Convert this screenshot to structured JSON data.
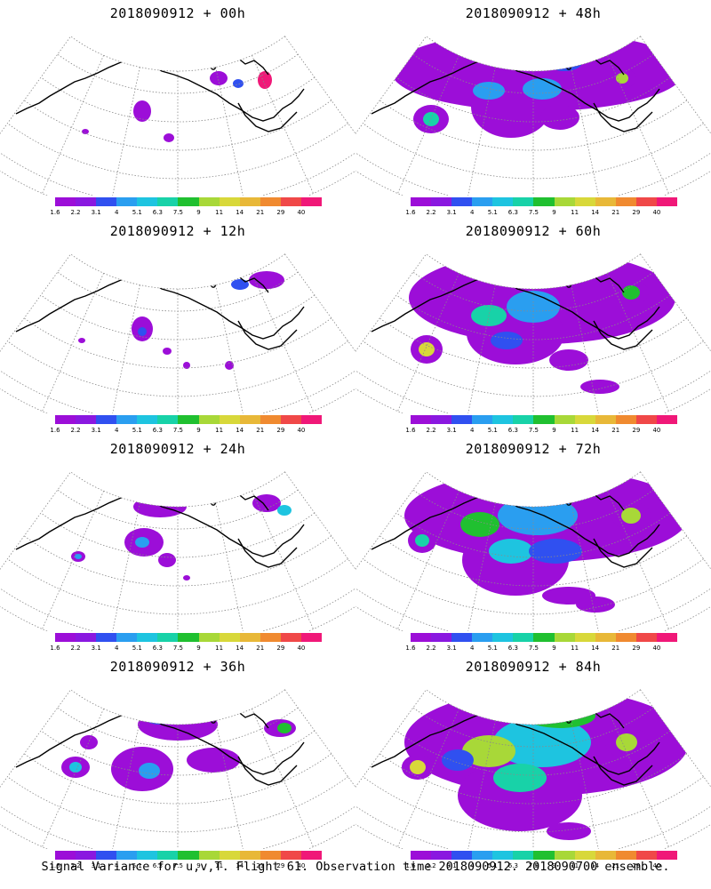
{
  "footer": "Signal Variance for u,v,T. Flight 61. Observation time 2018090912. 2018090700 ensemble.",
  "colorbar": {
    "labels": [
      "1.6",
      "2.2",
      "3.1",
      "4",
      "5.1",
      "6.3",
      "7.5",
      "9",
      "11",
      "14",
      "21",
      "29",
      "40"
    ],
    "colors": [
      "#9c0ed8",
      "#8a18e0",
      "#3050f0",
      "#2a9ef0",
      "#1ec4e0",
      "#18d2a8",
      "#20c030",
      "#a8d838",
      "#d8d83a",
      "#e8b838",
      "#f08a30",
      "#f04848",
      "#f01878"
    ]
  },
  "panels": [
    {
      "title": "2018090912 + 00h"
    },
    {
      "title": "2018090912 + 48h"
    },
    {
      "title": "2018090912 + 12h"
    },
    {
      "title": "2018090912 + 60h"
    },
    {
      "title": "2018090912 + 24h"
    },
    {
      "title": "2018090912 + 72h"
    },
    {
      "title": "2018090912 + 36h"
    },
    {
      "title": "2018090912 + 84h"
    }
  ]
}
